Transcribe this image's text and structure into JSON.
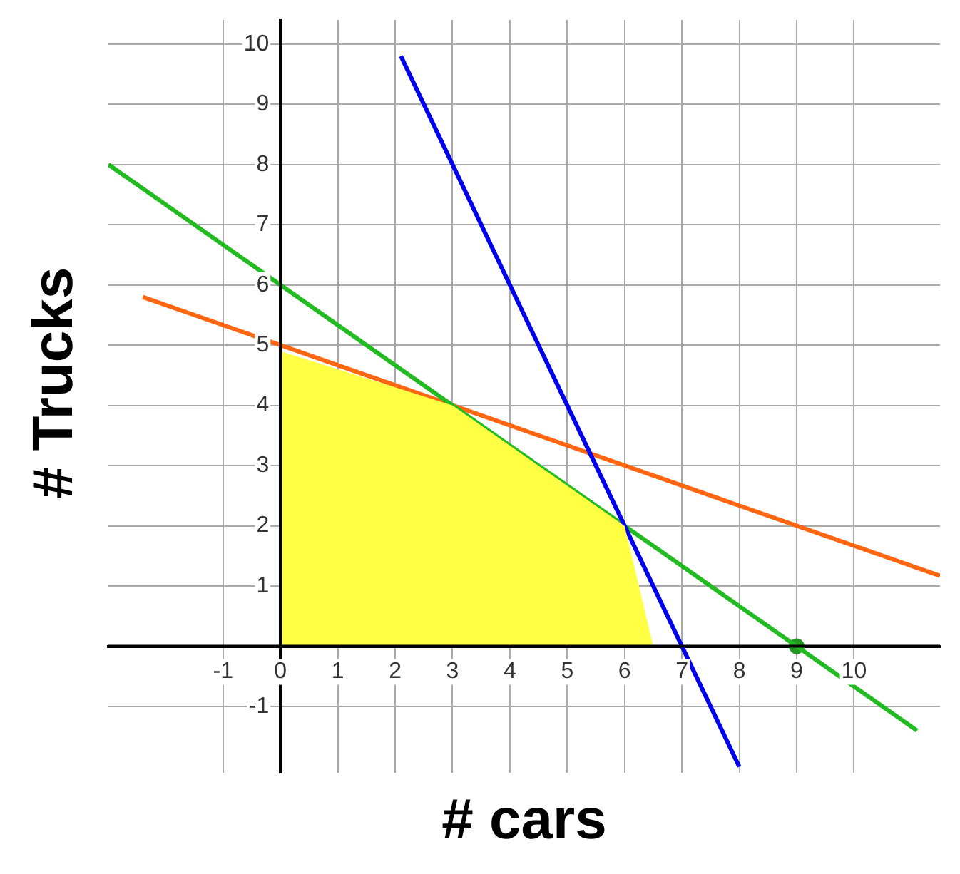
{
  "chart_data": {
    "type": "line",
    "xlabel": "# cars",
    "ylabel": "# Trucks",
    "xlim": [
      -3,
      11.5
    ],
    "ylim": [
      -2.1,
      10.4
    ],
    "xticks": [
      -1,
      0,
      1,
      2,
      3,
      4,
      5,
      6,
      7,
      8,
      9,
      10
    ],
    "yticks": [
      -1,
      {
        "value": 0,
        "label": null
      },
      1,
      2,
      3,
      4,
      5,
      6,
      7,
      8,
      9,
      10
    ],
    "grid": true,
    "series": [
      {
        "type": "area",
        "color": "#ffff44",
        "x": [
          0,
          0,
          3,
          6,
          6.5
        ],
        "values": [
          0,
          4.9,
          4,
          2,
          0
        ]
      },
      {
        "type": "line",
        "color": "#0000ee",
        "x": [
          2.1,
          8
        ],
        "values": [
          9.8,
          -2
        ]
      },
      {
        "type": "line",
        "color": "#22bb22",
        "x": [
          -3,
          11.1
        ],
        "values": [
          8,
          -1.4
        ]
      },
      {
        "type": "line",
        "color": "#ff6611",
        "x": [
          -2.4,
          11.5
        ],
        "values": [
          5.8,
          1.17
        ]
      },
      {
        "type": "scatter",
        "color": "#229922",
        "x": [
          9
        ],
        "values": [
          0
        ]
      }
    ]
  }
}
